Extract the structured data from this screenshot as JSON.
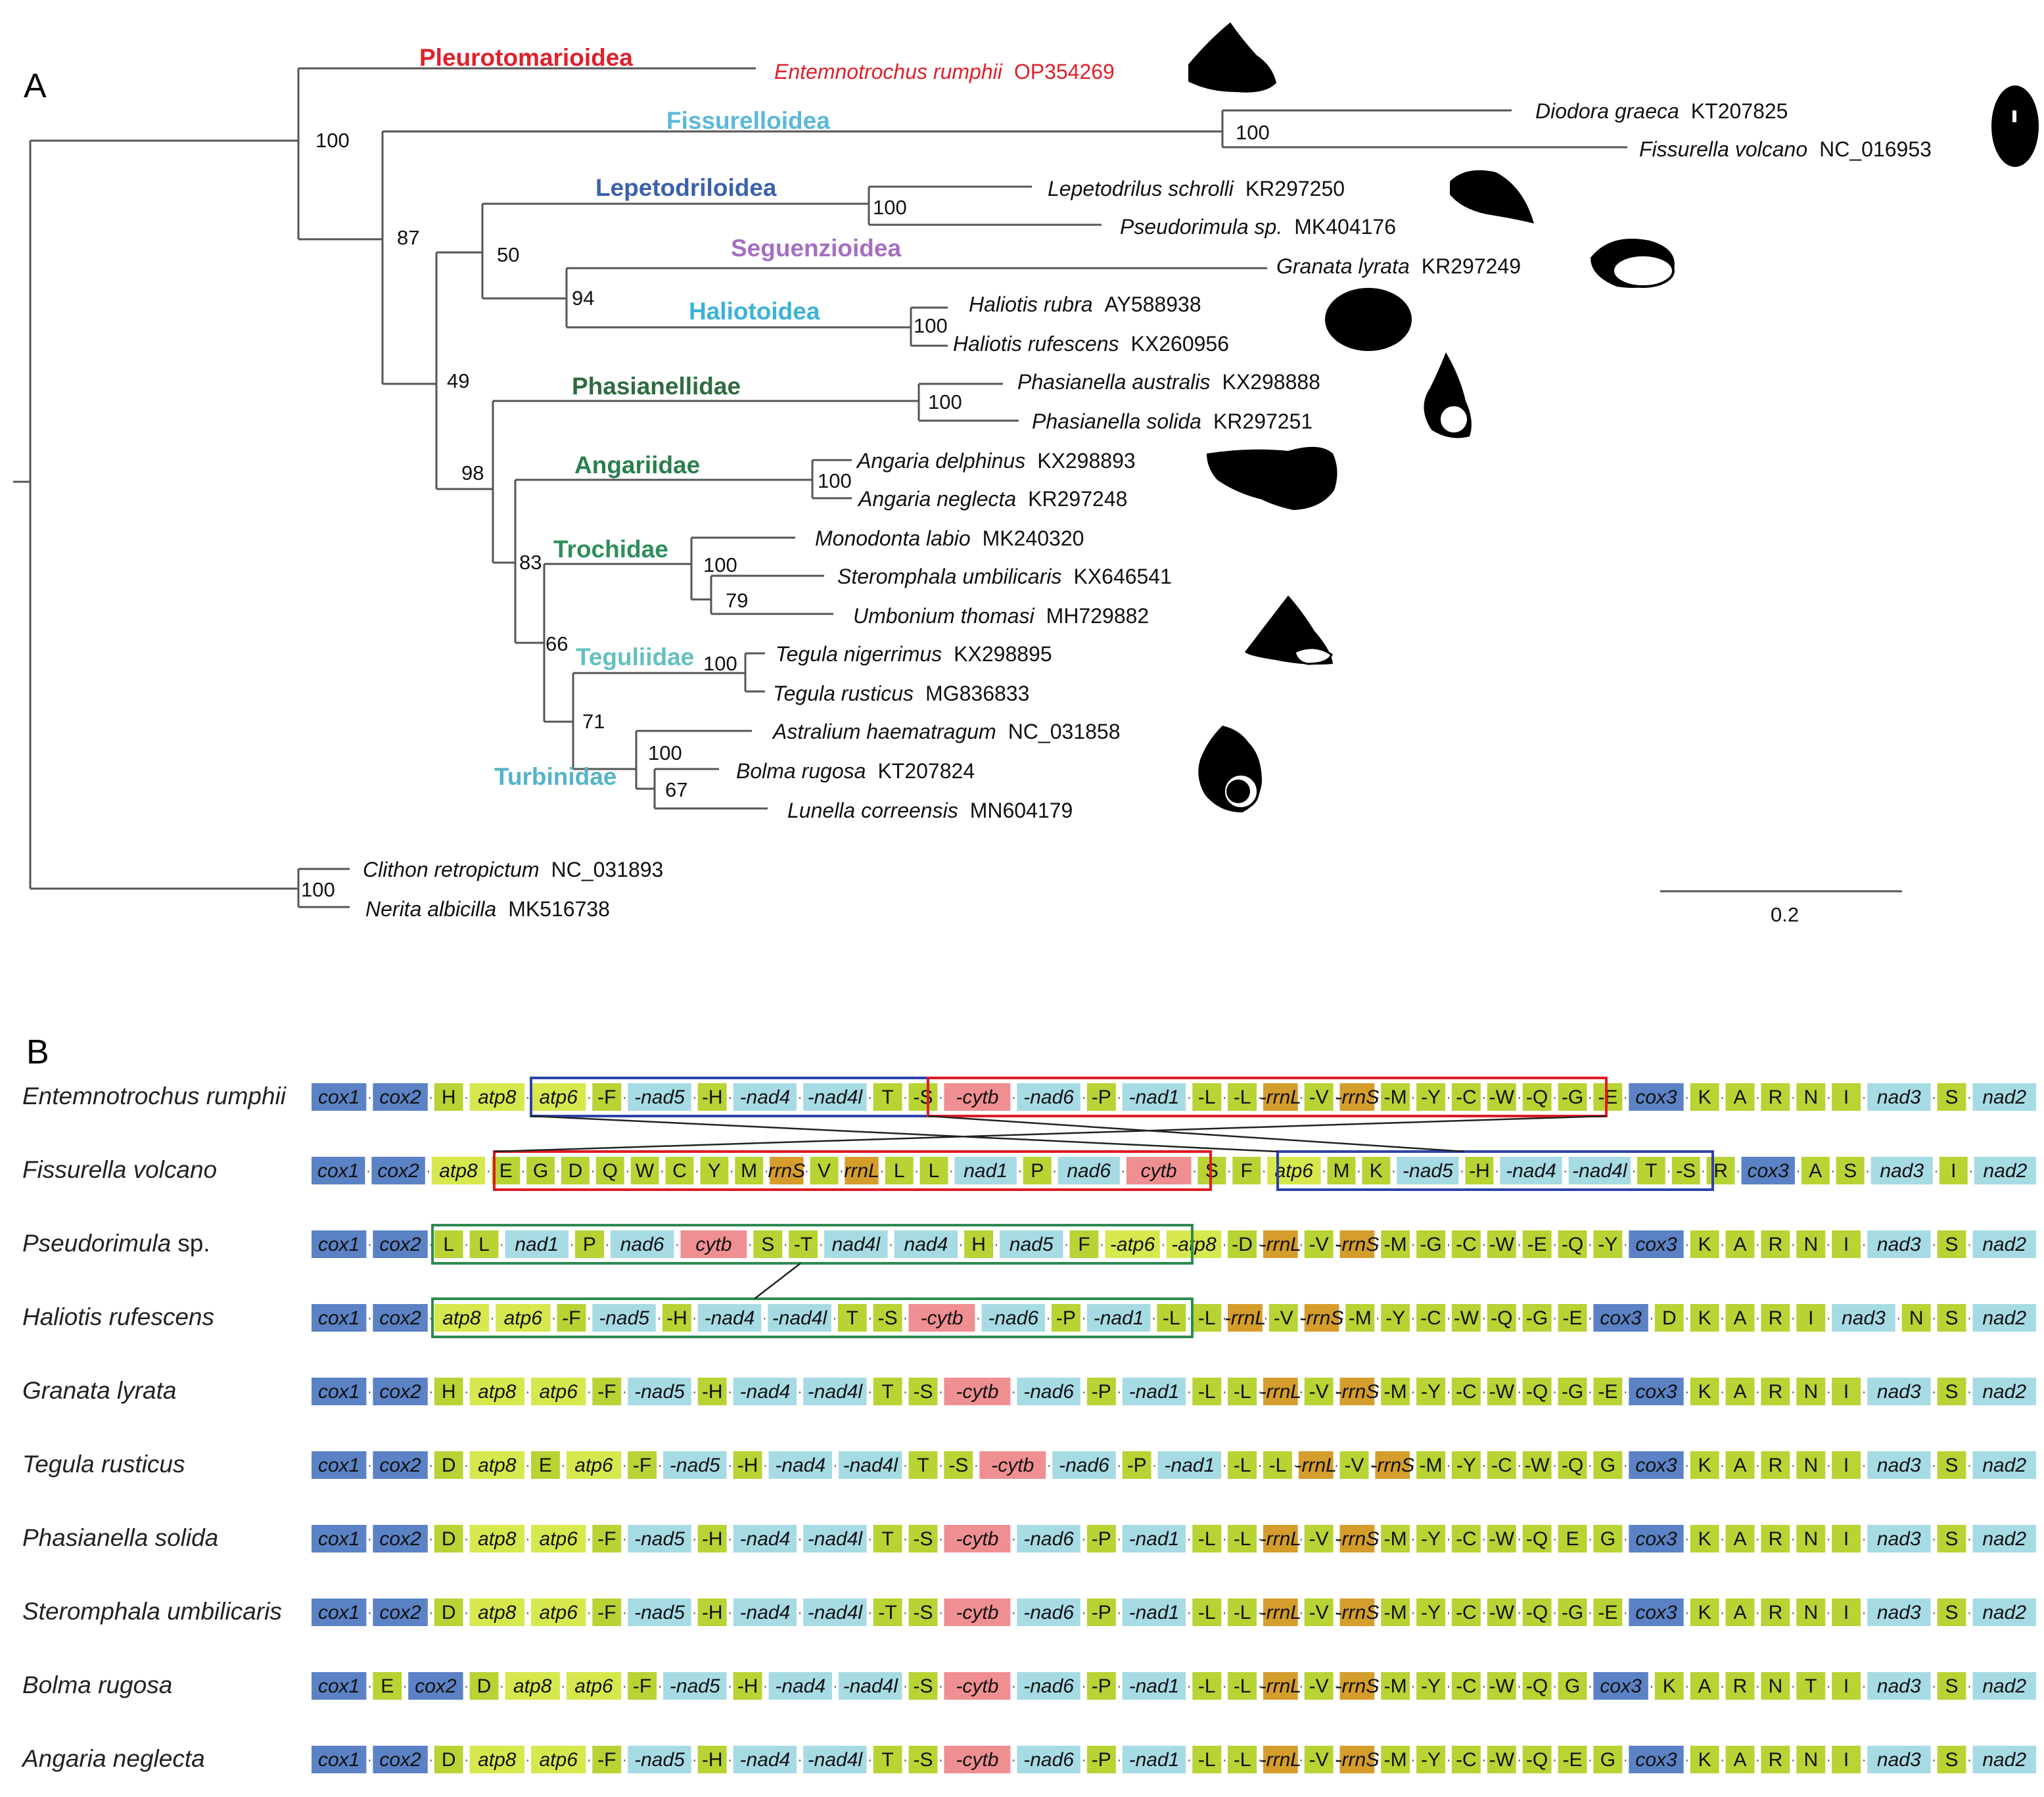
{
  "panels": {
    "a": "A",
    "b": "B"
  },
  "colors": {
    "branch": "#555555",
    "accent_red": "#e0202b",
    "cox": "#5b82c4",
    "trna": "#b7d334",
    "atp": "#d6e84e",
    "nad": "#a7dbe4",
    "cytb": "#ef8f92",
    "rrna": "#d59d2c",
    "box_red": "#e01a22",
    "box_blue": "#2c43a8",
    "box_green": "#2f8a53"
  },
  "tree": {
    "taxa": [
      {
        "name": "Entemnotrochus rumphii",
        "acc": "OP354269",
        "highlight": true
      },
      {
        "name": "Diodora graeca",
        "acc": "KT207825"
      },
      {
        "name": "Fissurella volcano",
        "acc": "NC_016953"
      },
      {
        "name": "Lepetodrilus schrolli",
        "acc": "KR297250"
      },
      {
        "name": "Pseudorimula sp.",
        "acc": "MK404176"
      },
      {
        "name": "Granata lyrata",
        "acc": "KR297249"
      },
      {
        "name": "Haliotis rubra",
        "acc": "AY588938"
      },
      {
        "name": "Haliotis rufescens",
        "acc": "KX260956"
      },
      {
        "name": "Phasianella australis",
        "acc": "KX298888"
      },
      {
        "name": "Phasianella solida",
        "acc": "KR297251"
      },
      {
        "name": "Angaria delphinus",
        "acc": "KX298893"
      },
      {
        "name": "Angaria neglecta",
        "acc": "KR297248"
      },
      {
        "name": "Monodonta labio",
        "acc": "MK240320"
      },
      {
        "name": "Steromphala umbilicaris",
        "acc": "KX646541"
      },
      {
        "name": "Umbonium thomasi",
        "acc": "MH729882"
      },
      {
        "name": "Tegula nigerrimus",
        "acc": "KX298895"
      },
      {
        "name": "Tegula rusticus",
        "acc": "MG836833"
      },
      {
        "name": "Astralium haematragum",
        "acc": "NC_031858"
      },
      {
        "name": "Bolma rugosa",
        "acc": "KT207824"
      },
      {
        "name": "Lunella correensis",
        "acc": "MN604179"
      },
      {
        "name": "Clithon retropictum",
        "acc": "NC_031893"
      },
      {
        "name": "Nerita albicilla",
        "acc": "MK516738"
      }
    ],
    "clades": [
      {
        "name": "Pleurotomarioidea",
        "color": "#e0202b"
      },
      {
        "name": "Fissurelloidea",
        "color": "#5bb7d9"
      },
      {
        "name": "Lepetodriloidea",
        "color": "#3b61ad"
      },
      {
        "name": "Seguenzioidea",
        "color": "#a56fc0"
      },
      {
        "name": "Haliotoidea",
        "color": "#3bb2d9"
      },
      {
        "name": "Phasianellidae",
        "color": "#2e6b3f"
      },
      {
        "name": "Angariidae",
        "color": "#2b7f4d"
      },
      {
        "name": "Trochidae",
        "color": "#2e8f5c"
      },
      {
        "name": "Teguliidae",
        "color": "#64c0c0"
      },
      {
        "name": "Turbinidae",
        "color": "#55b3c8"
      }
    ],
    "support": [
      "100",
      "87",
      "100",
      "50",
      "100",
      "94",
      "100",
      "49",
      "98",
      "100",
      "100",
      "83",
      "100",
      "79",
      "66",
      "100",
      "71",
      "100",
      "67",
      "100"
    ],
    "scale": "0.2"
  },
  "gene_order": {
    "rows": [
      {
        "name": "Entemnotrochus rumphii",
        "highlight": true,
        "genes": [
          "cox1",
          "cox2",
          "H",
          "atp8",
          "atp6",
          "-F",
          "-nad5",
          "-H",
          "-nad4",
          "-nad4l",
          "T",
          "-S",
          "-cytb",
          "-nad6",
          "-P",
          "-nad1",
          "-L",
          "-L",
          "-rrnL",
          "-V",
          "-rrnS",
          "-M",
          "-Y",
          "-C",
          "-W",
          "-Q",
          "-G",
          "-E",
          "cox3",
          "K",
          "A",
          "R",
          "N",
          "I",
          "nad3",
          "S",
          "nad2"
        ]
      },
      {
        "name": "Fissurella volcano",
        "genes": [
          "cox1",
          "cox2",
          "atp8",
          "E",
          "G",
          "D",
          "Q",
          "W",
          "C",
          "Y",
          "M",
          "rrnS",
          "V",
          "rrnL",
          "L",
          "L",
          "nad1",
          "P",
          "nad6",
          "cytb",
          "S",
          "F",
          "atp6",
          "M",
          "K",
          "-nad5",
          "-H",
          "-nad4",
          "-nad4l",
          "T",
          "-S",
          "R",
          "cox3",
          "A",
          "S",
          "nad3",
          "I",
          "nad2"
        ]
      },
      {
        "name": "Pseudorimula",
        "suffix": "sp.",
        "genes": [
          "cox1",
          "cox2",
          "L",
          "L",
          "nad1",
          "P",
          "nad6",
          "cytb",
          "S",
          "-T",
          "nad4l",
          "nad4",
          "H",
          "nad5",
          "F",
          "-atp6",
          "-atp8",
          "-D",
          "-rrnL",
          "-V",
          "-rrnS",
          "-M",
          "-G",
          "-C",
          "-W",
          "-E",
          "-Q",
          "-Y",
          "cox3",
          "K",
          "A",
          "R",
          "N",
          "I",
          "nad3",
          "S",
          "nad2"
        ]
      },
      {
        "name": "Haliotis rufescens",
        "genes": [
          "cox1",
          "cox2",
          "atp8",
          "atp6",
          "-F",
          "-nad5",
          "-H",
          "-nad4",
          "-nad4l",
          "T",
          "-S",
          "-cytb",
          "-nad6",
          "-P",
          "-nad1",
          "-L",
          "-L",
          "-rrnL",
          "-V",
          "-rrnS",
          "-M",
          "-Y",
          "-C",
          "-W",
          "-Q",
          "-G",
          "-E",
          "cox3",
          "D",
          "K",
          "A",
          "R",
          "I",
          "nad3",
          "N",
          "S",
          "nad2"
        ]
      },
      {
        "name": "Granata lyrata",
        "genes": [
          "cox1",
          "cox2",
          "H",
          "atp8",
          "atp6",
          "-F",
          "-nad5",
          "-H",
          "-nad4",
          "-nad4l",
          "T",
          "-S",
          "-cytb",
          "-nad6",
          "-P",
          "-nad1",
          "-L",
          "-L",
          "-rrnL",
          "-V",
          "-rrnS",
          "-M",
          "-Y",
          "-C",
          "-W",
          "-Q",
          "-G",
          "-E",
          "cox3",
          "K",
          "A",
          "R",
          "N",
          "I",
          "nad3",
          "S",
          "nad2"
        ]
      },
      {
        "name": "Tegula rusticus",
        "genes": [
          "cox1",
          "cox2",
          "D",
          "atp8",
          "E",
          "atp6",
          "-F",
          "-nad5",
          "-H",
          "-nad4",
          "-nad4l",
          "T",
          "-S",
          "-cytb",
          "-nad6",
          "-P",
          "-nad1",
          "-L",
          "-L",
          "-rrnL",
          "-V",
          "-rrnS",
          "-M",
          "-Y",
          "-C",
          "-W",
          "-Q",
          "G",
          "cox3",
          "K",
          "A",
          "R",
          "N",
          "I",
          "nad3",
          "S",
          "nad2"
        ]
      },
      {
        "name": "Phasianella solida",
        "genes": [
          "cox1",
          "cox2",
          "D",
          "atp8",
          "atp6",
          "-F",
          "-nad5",
          "-H",
          "-nad4",
          "-nad4l",
          "T",
          "-S",
          "-cytb",
          "-nad6",
          "-P",
          "-nad1",
          "-L",
          "-L",
          "-rrnL",
          "-V",
          "-rrnS",
          "-M",
          "-Y",
          "-C",
          "-W",
          "-Q",
          "E",
          "G",
          "cox3",
          "K",
          "A",
          "R",
          "N",
          "I",
          "nad3",
          "S",
          "nad2"
        ]
      },
      {
        "name": "Steromphala umbilicaris",
        "genes": [
          "cox1",
          "cox2",
          "D",
          "atp8",
          "atp6",
          "-F",
          "-nad5",
          "-H",
          "-nad4",
          "-nad4l",
          "-T",
          "-S",
          "-cytb",
          "-nad6",
          "-P",
          "-nad1",
          "-L",
          "-L",
          "-rrnL",
          "-V",
          "-rrnS",
          "-M",
          "-Y",
          "-C",
          "-W",
          "-Q",
          "-G",
          "-E",
          "cox3",
          "K",
          "A",
          "R",
          "N",
          "I",
          "nad3",
          "S",
          "nad2"
        ]
      },
      {
        "name": "Bolma rugosa",
        "genes": [
          "cox1",
          "E",
          "cox2",
          "D",
          "atp8",
          "atp6",
          "-F",
          "-nad5",
          "-H",
          "-nad4",
          "-nad4l",
          "-S",
          "-cytb",
          "-nad6",
          "-P",
          "-nad1",
          "-L",
          "-L",
          "-rrnL",
          "-V",
          "-rrnS",
          "-M",
          "-Y",
          "-C",
          "-W",
          "-Q",
          "G",
          "cox3",
          "K",
          "A",
          "R",
          "N",
          "T",
          "I",
          "nad3",
          "S",
          "nad2"
        ]
      },
      {
        "name": "Angaria neglecta",
        "genes": [
          "cox1",
          "cox2",
          "D",
          "atp8",
          "atp6",
          "-F",
          "-nad5",
          "-H",
          "-nad4",
          "-nad4l",
          "T",
          "-S",
          "-cytb",
          "-nad6",
          "-P",
          "-nad1",
          "-L",
          "-L",
          "-rrnL",
          "-V",
          "-rrnS",
          "-M",
          "-Y",
          "-C",
          "-W",
          "-Q",
          "-E",
          "G",
          "cox3",
          "K",
          "A",
          "R",
          "N",
          "I",
          "nad3",
          "S",
          "nad2"
        ]
      }
    ]
  }
}
